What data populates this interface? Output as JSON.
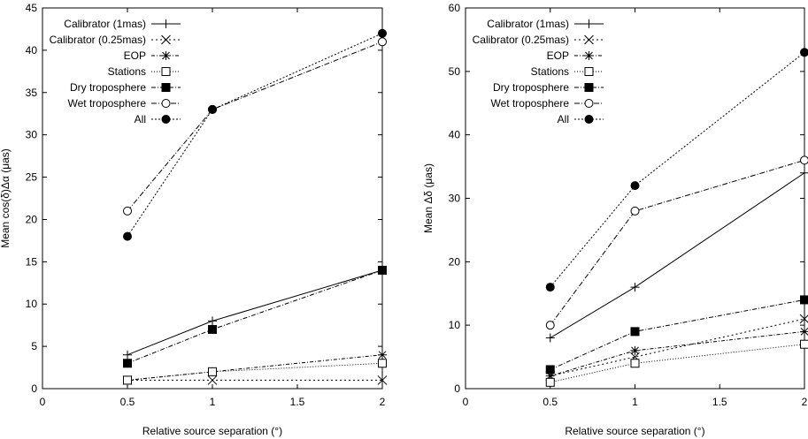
{
  "series_styles": [
    {
      "marker": "plus",
      "dash": ""
    },
    {
      "marker": "x",
      "dash": "2,3"
    },
    {
      "marker": "star",
      "dash": "4,2,1,2"
    },
    {
      "marker": "square-open",
      "dash": "1,2"
    },
    {
      "marker": "square-filled",
      "dash": "5,2,1,2"
    },
    {
      "marker": "circle-open",
      "dash": "6,2,1,2"
    },
    {
      "marker": "circle-filled",
      "dash": "2,2"
    }
  ],
  "chart_data": [
    {
      "type": "line",
      "xlabel": "Relative source separation (°)",
      "ylabel": "Mean cos(δ)Δα (μas)",
      "xlim": [
        0,
        2
      ],
      "ylim": [
        0,
        45
      ],
      "xticks": [
        "0",
        "0.5",
        "1",
        "1.5",
        "2"
      ],
      "yticks": [
        "0",
        "5",
        "10",
        "15",
        "20",
        "25",
        "30",
        "35",
        "40",
        "45"
      ],
      "legend_position": "top-left",
      "x": [
        0.5,
        1,
        2
      ],
      "series": [
        {
          "name": "Calibrator (1mas)",
          "values": [
            4,
            8,
            14
          ]
        },
        {
          "name": "Calibrator (0.25mas)",
          "values": [
            1,
            1,
            1
          ]
        },
        {
          "name": "EOP",
          "values": [
            1,
            2,
            4
          ]
        },
        {
          "name": "Stations",
          "values": [
            1,
            2,
            3
          ]
        },
        {
          "name": "Dry troposphere",
          "values": [
            3,
            7,
            14
          ]
        },
        {
          "name": "Wet troposphere",
          "values": [
            21,
            33,
            41
          ]
        },
        {
          "name": "All",
          "values": [
            18,
            33,
            42
          ]
        }
      ]
    },
    {
      "type": "line",
      "xlabel": "Relative source separation (°)",
      "ylabel": "Mean Δδ (μas)",
      "xlim": [
        0,
        2
      ],
      "ylim": [
        0,
        60
      ],
      "xticks": [
        "0",
        "0.5",
        "1",
        "1.5",
        "2"
      ],
      "yticks": [
        "0",
        "10",
        "20",
        "30",
        "40",
        "50",
        "60"
      ],
      "legend_position": "top-left",
      "x": [
        0.5,
        1,
        2
      ],
      "series": [
        {
          "name": "Calibrator (1mas)",
          "values": [
            8,
            16,
            34
          ]
        },
        {
          "name": "Calibrator (0.25mas)",
          "values": [
            2,
            5,
            11
          ]
        },
        {
          "name": "EOP",
          "values": [
            2,
            6,
            9
          ]
        },
        {
          "name": "Stations",
          "values": [
            1,
            4,
            7
          ]
        },
        {
          "name": "Dry troposphere",
          "values": [
            3,
            9,
            14
          ]
        },
        {
          "name": "Wet troposphere",
          "values": [
            10,
            28,
            36
          ]
        },
        {
          "name": "All",
          "values": [
            16,
            32,
            53
          ]
        }
      ]
    }
  ]
}
